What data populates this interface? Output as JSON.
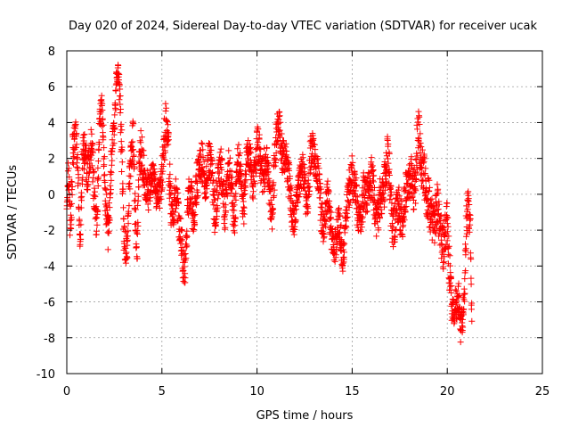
{
  "chart_data": {
    "type": "scatter",
    "title": "Day 020 of 2024, Sidereal Day-to-day VTEC variation (SDTVAR) for receiver ucak",
    "xlabel": "GPS time / hours",
    "ylabel": "SDTVAR / TECUs",
    "xlim": [
      0,
      25
    ],
    "ylim": [
      -10,
      8
    ],
    "xticks": [
      0,
      5,
      10,
      15,
      20,
      25
    ],
    "yticks": [
      -10,
      -8,
      -6,
      -4,
      -2,
      0,
      2,
      4,
      6,
      8
    ],
    "grid": true,
    "marker": "+",
    "color": "#ff0000",
    "x_start": 0.0,
    "x_step": 0.1,
    "trend": [
      -0.5,
      1.0,
      -2.0,
      2.0,
      3.5,
      3.0,
      0.5,
      -3.0,
      1.5,
      2.5,
      2.0,
      1.0,
      2.0,
      3.0,
      1.0,
      -1.5,
      -1.0,
      3.5,
      5.0,
      4.0,
      0.5,
      -1.0,
      -2.5,
      1.0,
      3.0,
      4.0,
      6.0,
      7.0,
      5.0,
      2.0,
      -2.5,
      -3.0,
      -2.5,
      1.0,
      2.0,
      3.5,
      -1.5,
      -3.0,
      2.0,
      2.5,
      1.5,
      1.0,
      0.5,
      0.0,
      0.5,
      1.0,
      0.5,
      0.0,
      0.0,
      0.0,
      1.0,
      2.5,
      4.0,
      3.5,
      1.0,
      -1.0,
      -1.5,
      0.0,
      -0.5,
      -1.5,
      -2.0,
      -3.5,
      -4.5,
      -2.5,
      0.0,
      0.5,
      -1.0,
      -1.5,
      0.5,
      1.0,
      1.5,
      2.0,
      1.0,
      0.5,
      1.5,
      2.0,
      1.5,
      0.0,
      -1.5,
      0.0,
      1.0,
      1.5,
      0.5,
      -1.0,
      0.0,
      1.5,
      1.0,
      0.0,
      -2.0,
      0.5,
      2.0,
      1.5,
      0.0,
      -1.0,
      1.0,
      2.5,
      2.0,
      1.5,
      0.5,
      1.5,
      3.0,
      2.5,
      1.5,
      1.0,
      1.5,
      2.0,
      1.0,
      -0.5,
      -1.0,
      1.0,
      3.0,
      4.0,
      3.5,
      2.5,
      2.0,
      2.0,
      1.5,
      0.5,
      -0.5,
      -1.5,
      -1.0,
      0.0,
      0.5,
      1.0,
      1.5,
      0.5,
      -0.5,
      0.0,
      2.0,
      2.5,
      2.0,
      1.5,
      1.0,
      0.5,
      -1.5,
      -2.0,
      -1.0,
      0.0,
      -1.0,
      -2.0,
      -2.5,
      -3.0,
      -2.0,
      -1.5,
      -2.5,
      -3.5,
      -2.5,
      -1.0,
      0.0,
      0.5,
      1.0,
      0.5,
      0.0,
      -1.0,
      -1.5,
      -1.0,
      0.0,
      0.0,
      0.0,
      0.5,
      1.0,
      0.5,
      -1.0,
      -1.5,
      -1.0,
      0.0,
      0.0,
      0.5,
      1.5,
      2.5,
      0.0,
      -1.5,
      -2.0,
      -1.0,
      -0.5,
      -1.0,
      -1.5,
      -1.0,
      0.0,
      0.5,
      0.5,
      1.0,
      0.5,
      0.0,
      2.5,
      3.5,
      2.0,
      1.5,
      1.0,
      0.0,
      0.0,
      -1.0,
      -1.5,
      -2.0,
      -1.0,
      -0.5,
      -2.0,
      -2.5,
      -3.0,
      -2.0,
      -1.5,
      -4.0,
      -5.5,
      -7.0,
      -6.0,
      -6.5,
      -5.5,
      -7.5,
      -7.0,
      -6.0,
      -1.5,
      -0.5,
      -1.5,
      -7.0
    ],
    "spread": [
      1.0,
      1.2,
      1.4,
      1.4,
      1.0,
      0.8,
      1.2,
      1.0,
      1.4,
      1.2,
      1.2,
      1.2,
      1.2,
      1.0,
      1.4,
      1.2,
      1.2,
      1.0,
      1.0,
      1.0,
      1.4,
      1.2,
      1.2,
      1.2,
      1.0,
      1.0,
      0.8,
      0.4,
      1.0,
      1.4,
      1.0,
      1.0,
      1.2,
      1.4,
      1.2,
      1.0,
      1.4,
      1.2,
      1.2,
      1.2,
      1.2,
      1.2,
      1.0,
      1.0,
      1.0,
      1.0,
      1.0,
      0.8,
      0.8,
      1.0,
      1.0,
      1.4,
      1.2,
      1.2,
      1.4,
      1.2,
      1.0,
      1.0,
      1.0,
      1.0,
      1.2,
      1.2,
      0.8,
      1.2,
      1.2,
      1.0,
      1.0,
      1.0,
      1.2,
      1.2,
      1.0,
      1.2,
      1.0,
      1.0,
      1.0,
      1.2,
      1.0,
      1.2,
      1.2,
      1.2,
      1.0,
      1.2,
      1.2,
      1.2,
      1.0,
      1.0,
      1.0,
      1.2,
      1.2,
      1.2,
      1.0,
      1.0,
      1.0,
      1.2,
      1.0,
      1.0,
      1.0,
      1.0,
      1.2,
      1.2,
      1.0,
      1.2,
      1.0,
      1.2,
      1.2,
      1.0,
      1.2,
      1.2,
      1.2,
      1.2,
      1.2,
      1.0,
      1.0,
      1.2,
      1.0,
      1.0,
      1.2,
      1.2,
      1.0,
      1.0,
      1.0,
      1.0,
      1.0,
      1.0,
      1.2,
      1.0,
      1.0,
      1.2,
      1.2,
      1.0,
      1.0,
      1.0,
      1.0,
      1.2,
      1.2,
      1.0,
      1.0,
      1.0,
      1.0,
      1.0,
      1.0,
      1.0,
      1.0,
      1.0,
      1.2,
      1.0,
      1.0,
      1.0,
      1.2,
      1.0,
      1.2,
      1.0,
      1.2,
      1.2,
      1.0,
      1.0,
      1.2,
      1.0,
      1.0,
      1.0,
      1.2,
      1.0,
      1.2,
      1.0,
      1.2,
      1.2,
      1.0,
      1.2,
      1.4,
      1.2,
      1.4,
      1.2,
      1.2,
      1.2,
      1.2,
      1.2,
      1.2,
      1.2,
      1.2,
      1.2,
      1.2,
      1.2,
      1.2,
      1.4,
      1.4,
      1.2,
      1.4,
      1.2,
      1.4,
      1.2,
      1.4,
      1.2,
      1.2,
      1.2,
      1.2,
      1.2,
      1.2,
      1.2,
      1.2,
      1.2,
      1.2,
      1.2,
      1.2,
      1.0,
      1.0,
      1.0,
      1.0,
      0.8,
      1.0,
      1.0,
      1.2,
      1.0,
      1.2,
      1.0
    ],
    "points_per_step": 12
  }
}
